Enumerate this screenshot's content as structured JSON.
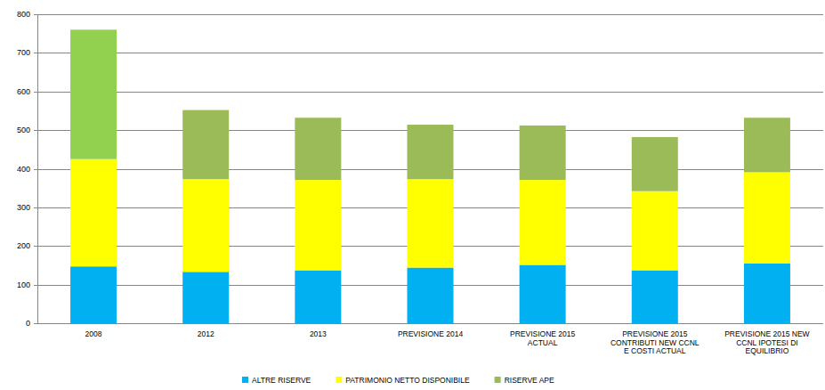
{
  "chart_data": {
    "type": "bar",
    "stacked": true,
    "grid": true,
    "legend": "bottom",
    "categories": [
      "2008",
      "2012",
      "2013",
      "PREVISIONE 2014",
      "PREVISIONE 2015 ACTUAL",
      "PREVISIONE 2015 CONTRIBUTI NEW CCNL E COSTI ACTUAL",
      "PREVISIONE 2015 NEW CCNL IPOTESI DI EQUILIBRIO"
    ],
    "series": [
      {
        "name": "ALTRE RISERVE",
        "color": "#00B0F0",
        "values": [
          147,
          133,
          137,
          144,
          151,
          137,
          155
        ]
      },
      {
        "name": "PATRIMONIO NETTO DISPONIBILE",
        "color": "#FFFF00",
        "values": [
          278,
          240,
          234,
          229,
          220,
          205,
          236
        ]
      },
      {
        "name": "RISERVE APE",
        "color": "#9BBB59",
        "colors": [
          "#92D050",
          "#9BBB59",
          "#9BBB59",
          "#9BBB59",
          "#9BBB59",
          "#9BBB59",
          "#9BBB59"
        ],
        "values": [
          335,
          179,
          161,
          141,
          141,
          140,
          141
        ]
      }
    ],
    "ylim": [
      0,
      800
    ],
    "yticks": [
      0,
      100,
      200,
      300,
      400,
      500,
      600,
      700,
      800
    ]
  }
}
